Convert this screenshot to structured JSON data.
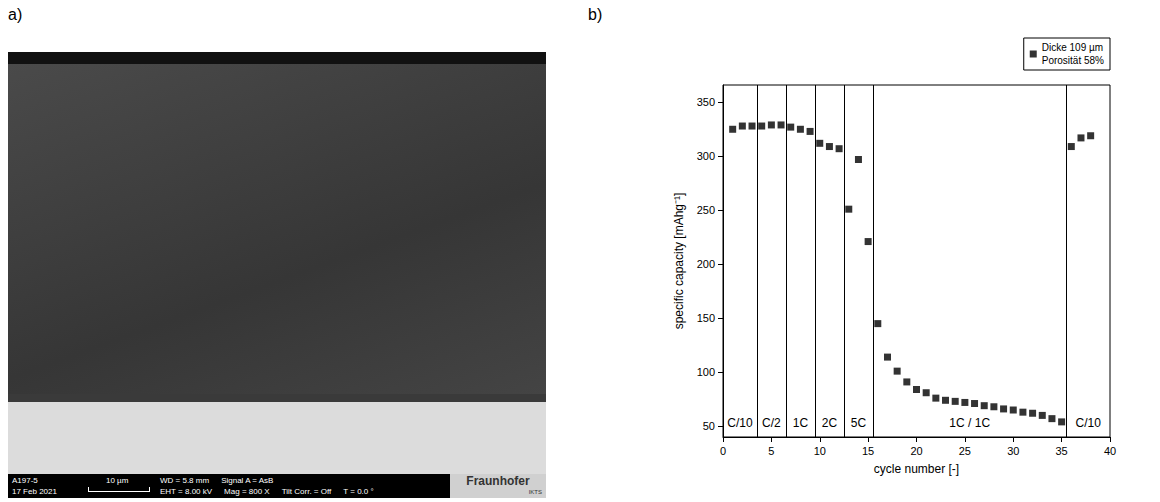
{
  "panel_a": {
    "label": "a)",
    "sample": "A197-5",
    "date": "17 Feb 2021",
    "scale_bar": "10 µm",
    "parameters": [
      [
        "WD = 5.8 mm",
        "Signal A = AsB"
      ],
      [
        "EHT = 8.00 kV",
        "Mag = 800 X",
        "Tilt Corr. = Off",
        "T = 0.0 °"
      ]
    ],
    "logo": "Fraunhofer",
    "logo_sub": "IKTS"
  },
  "chart_data": {
    "panel_label": "b)",
    "type": "scatter",
    "x_label": "cycle number [-]",
    "y_label": "specific capacity [mAhg⁻¹]",
    "series": [
      {
        "name": "Dicke 109 µm",
        "legend_note": "Porosität 58%",
        "color": "#000000",
        "marker": "square",
        "x": [
          1,
          2,
          3,
          4,
          5,
          6,
          7,
          8,
          9,
          10,
          11,
          12,
          13,
          14,
          15,
          16,
          17,
          18,
          19,
          20,
          21,
          22,
          23,
          24,
          25,
          26,
          27,
          28,
          29,
          30,
          31,
          32,
          33,
          34,
          35,
          36,
          37,
          38
        ],
        "values": [
          325,
          328,
          328,
          328,
          329,
          329,
          327,
          325,
          323,
          312,
          309,
          307,
          251,
          297,
          221,
          145,
          114,
          101,
          91,
          84,
          81,
          76,
          74,
          73,
          72,
          71,
          69,
          68,
          66,
          65,
          63,
          62,
          60,
          57,
          54,
          309,
          317,
          319
        ]
      }
    ],
    "regions": [
      {
        "label": "C/10",
        "from": 0,
        "to": 3.5
      },
      {
        "label": "C/2",
        "from": 3.5,
        "to": 6.5
      },
      {
        "label": "1C",
        "from": 6.5,
        "to": 9.5
      },
      {
        "label": "2C",
        "from": 9.5,
        "to": 12.5
      },
      {
        "label": "5C",
        "from": 12.5,
        "to": 15.5
      },
      {
        "label": "1C / 1C",
        "from": 15.5,
        "to": 35.5
      },
      {
        "label": "C/10",
        "from": 35.5,
        "to": 40
      }
    ],
    "xlim": [
      0,
      40
    ],
    "xticks": [
      0,
      5,
      10,
      15,
      20,
      25,
      30,
      35,
      40
    ],
    "ylim": [
      40,
      366
    ],
    "yticks": [
      50,
      100,
      150,
      200,
      250,
      300,
      350
    ],
    "legend": "top-right",
    "grid": false
  }
}
